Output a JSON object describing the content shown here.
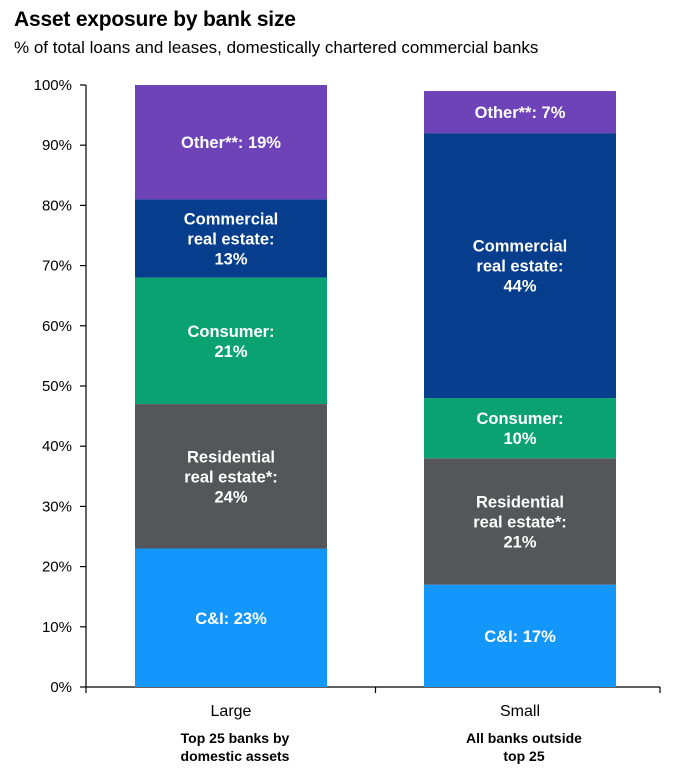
{
  "chart_data": {
    "type": "bar",
    "stacked": true,
    "title": "Asset exposure by bank size",
    "subtitle": "% of total loans and leases, domestically chartered commercial banks",
    "ylim": [
      0,
      100
    ],
    "yticks": [
      "0%",
      "10%",
      "20%",
      "30%",
      "40%",
      "50%",
      "60%",
      "70%",
      "80%",
      "90%",
      "100%"
    ],
    "categories": [
      {
        "label": "Large",
        "sublabel": [
          "Top 25 banks by",
          "domestic assets"
        ]
      },
      {
        "label": "Small",
        "sublabel": [
          "All banks outside",
          "top 25"
        ]
      }
    ],
    "series": [
      {
        "name": "C&I",
        "color": "#1497fd",
        "values": [
          23,
          17
        ],
        "labels": [
          [
            "C&I: 23%"
          ],
          [
            "C&I: 17%"
          ]
        ]
      },
      {
        "name": "Residential real estate*",
        "color": "#555659",
        "values": [
          24,
          21
        ],
        "labels": [
          [
            "Residential",
            "real estate*:",
            "24%"
          ],
          [
            "Residential",
            "real estate*:",
            "21%"
          ]
        ]
      },
      {
        "name": "Consumer",
        "color": "#0aa271",
        "values": [
          21,
          10
        ],
        "labels": [
          [
            "Consumer:",
            "21%"
          ],
          [
            "Consumer:",
            "10%"
          ]
        ]
      },
      {
        "name": "Commercial real estate",
        "color": "#063d8c",
        "values": [
          13,
          44
        ],
        "labels": [
          [
            "Commercial",
            "real estate:",
            "13%"
          ],
          [
            "Commercial",
            "real estate:",
            "44%"
          ]
        ]
      },
      {
        "name": "Other**",
        "color": "#6e43b8",
        "values": [
          19,
          7
        ],
        "labels": [
          [
            "Other**: 19%"
          ],
          [
            "Other**: 7%"
          ]
        ]
      }
    ]
  }
}
